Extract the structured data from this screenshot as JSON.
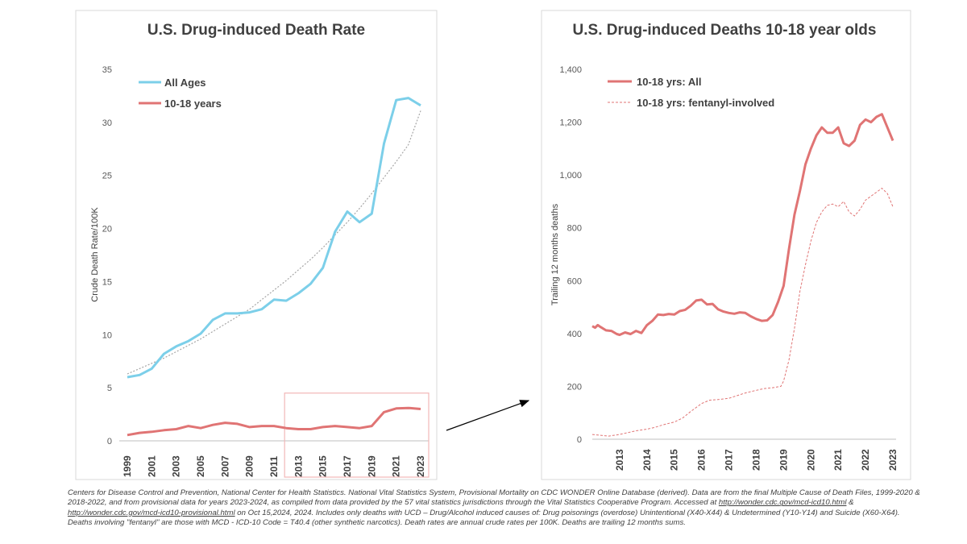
{
  "colors": {
    "all_ages": "#7ccfe9",
    "youth": "#e07474",
    "trend": "#a6a6a6",
    "highlight_box": "#f2b7b7",
    "axis": "#bfbfbf",
    "arrow": "#000000"
  },
  "chart_data": [
    {
      "type": "line",
      "title": "U.S. Drug-induced Death Rate",
      "xlabel": "",
      "ylabel": "Crude Death Rate/100K",
      "ylim": [
        0,
        35
      ],
      "yticks": [
        0,
        5,
        10,
        15,
        20,
        25,
        30,
        35
      ],
      "tick_labels": [
        "0",
        "5",
        "10",
        "15",
        "20",
        "25",
        "30",
        "35"
      ],
      "x": [
        1999,
        2000,
        2001,
        2002,
        2003,
        2004,
        2005,
        2006,
        2007,
        2008,
        2009,
        2010,
        2011,
        2012,
        2013,
        2014,
        2015,
        2016,
        2017,
        2018,
        2019,
        2020,
        2021,
        2022,
        2023
      ],
      "x_tick_labels": [
        "1999",
        "2001",
        "2003",
        "2005",
        "2007",
        "2009",
        "2011",
        "2013",
        "2015",
        "2017",
        "2019",
        "2021",
        "2023"
      ],
      "series": [
        {
          "name": "All Ages",
          "values": [
            6.0,
            6.2,
            6.8,
            8.2,
            8.9,
            9.4,
            10.1,
            11.4,
            12.0,
            12.0,
            12.1,
            12.4,
            13.3,
            13.2,
            13.9,
            14.8,
            16.3,
            19.7,
            21.6,
            20.6,
            21.4,
            28.0,
            32.1,
            32.3,
            31.6
          ]
        },
        {
          "name": "10-18 years",
          "values": [
            0.55,
            0.75,
            0.85,
            1.0,
            1.1,
            1.4,
            1.2,
            1.5,
            1.7,
            1.6,
            1.3,
            1.4,
            1.4,
            1.2,
            1.1,
            1.1,
            1.3,
            1.4,
            1.3,
            1.2,
            1.4,
            2.7,
            3.05,
            3.1,
            3.0
          ]
        },
        {
          "name": "All Ages trend",
          "style": "dotted",
          "values": [
            6.3,
            6.8,
            7.3,
            7.8,
            8.4,
            9.0,
            9.6,
            10.3,
            11.0,
            11.7,
            12.4,
            13.3,
            14.2,
            15.1,
            16.1,
            17.1,
            18.2,
            19.4,
            20.6,
            21.9,
            23.3,
            24.8,
            26.3,
            27.9,
            31.1
          ]
        }
      ],
      "highlight": {
        "from": "2012",
        "to": "2023",
        "ymin": 0,
        "ymax": 4.5
      }
    },
    {
      "type": "line",
      "title": "U.S. Drug-induced Deaths 10-18 year olds",
      "xlabel": "",
      "ylabel": "Trailing 12 months deaths",
      "ylim": [
        0,
        1400
      ],
      "xlim": [
        2012.0,
        2023.0
      ],
      "yticks": [
        0,
        200,
        400,
        600,
        800,
        1000,
        1200,
        1400
      ],
      "tick_labels": [
        "0",
        "200",
        "400",
        "600",
        "800",
        "1,000",
        "1,200",
        "1,400"
      ],
      "x_ticks": [
        2013,
        2014,
        2015,
        2016,
        2017,
        2018,
        2019,
        2020,
        2021,
        2022,
        2023
      ],
      "x_tick_labels": [
        "2013",
        "2014",
        "2015",
        "2016",
        "2017",
        "2018",
        "2019",
        "2020",
        "2021",
        "2022",
        "2023"
      ],
      "series": [
        {
          "name": "10-18 yrs: All",
          "style": "solid",
          "x": [
            2012.0,
            2012.1,
            2012.2,
            2012.3,
            2012.5,
            2012.7,
            2012.9,
            2013.0,
            2013.2,
            2013.4,
            2013.6,
            2013.8,
            2014.0,
            2014.2,
            2014.4,
            2014.6,
            2014.8,
            2015.0,
            2015.2,
            2015.4,
            2015.6,
            2015.8,
            2016.0,
            2016.2,
            2016.4,
            2016.6,
            2016.8,
            2017.0,
            2017.2,
            2017.4,
            2017.6,
            2017.8,
            2018.0,
            2018.2,
            2018.4,
            2018.6,
            2018.8,
            2019.0,
            2019.2,
            2019.4,
            2019.6,
            2019.8,
            2020.0,
            2020.2,
            2020.4,
            2020.6,
            2020.8,
            2021.0,
            2021.2,
            2021.4,
            2021.6,
            2021.8,
            2022.0,
            2022.2,
            2022.4,
            2022.6,
            2022.8,
            2023.0
          ],
          "values": [
            428,
            422,
            432,
            425,
            412,
            410,
            398,
            395,
            404,
            398,
            410,
            402,
            432,
            448,
            472,
            470,
            474,
            472,
            485,
            490,
            505,
            525,
            528,
            510,
            512,
            492,
            483,
            478,
            475,
            480,
            478,
            465,
            455,
            448,
            450,
            470,
            520,
            580,
            720,
            850,
            940,
            1040,
            1100,
            1150,
            1180,
            1160,
            1160,
            1180,
            1120,
            1110,
            1130,
            1190,
            1210,
            1200,
            1220,
            1230,
            1180,
            1130
          ]
        },
        {
          "name": "10-18 yrs: fentanyl-involved",
          "style": "dashed",
          "x": [
            2012.0,
            2012.3,
            2012.6,
            2013.0,
            2013.3,
            2013.6,
            2014.0,
            2014.3,
            2014.6,
            2015.0,
            2015.3,
            2015.6,
            2016.0,
            2016.3,
            2016.6,
            2017.0,
            2017.3,
            2017.6,
            2018.0,
            2018.3,
            2018.6,
            2018.9,
            2019.0,
            2019.2,
            2019.4,
            2019.6,
            2019.8,
            2020.0,
            2020.2,
            2020.4,
            2020.6,
            2020.8,
            2021.0,
            2021.2,
            2021.4,
            2021.6,
            2021.8,
            2022.0,
            2022.2,
            2022.4,
            2022.6,
            2022.8,
            2023.0
          ],
          "values": [
            18,
            15,
            12,
            18,
            25,
            32,
            38,
            45,
            55,
            65,
            80,
            105,
            135,
            148,
            150,
            155,
            165,
            175,
            185,
            192,
            195,
            200,
            220,
            300,
            420,
            560,
            660,
            750,
            820,
            860,
            885,
            890,
            880,
            900,
            860,
            845,
            870,
            905,
            920,
            935,
            950,
            930,
            880
          ]
        }
      ]
    }
  ],
  "footnote": {
    "text_1": "Centers for Disease Control and Prevention, National Center for Health Statistics. National Vital Statistics System, Provisional Mortality on CDC WONDER Online Database (derived). Data are from the final Multiple Cause of Death Files, 1999-2020 & 2018-2022, and from provisional data for years 2023-2024, as compiled from data provided by the 57 vital statistics jurisdictions through the Vital Statistics Cooperative Program. Accessed at ",
    "link_1": "http://wonder.cdc.gov/mcd-icd10.html",
    "text_2": " & ",
    "link_2": "http://wonder.cdc.gov/mcd-icd10-provisional.html",
    "text_3": " on Oct 15,2024, 2024. Includes only deaths with UCD – Drug/Alcohol induced causes of: Drug poisonings (overdose) Unintentional (X40-X44) & Undetermined (Y10-Y14) and Suicide (X60-X64). Deaths involving \"fentanyl\" are those with MCD - ICD-10 Code = T40.4 (other synthetic narcotics). Death rates are annual crude rates per 100K. Deaths are trailing 12 months sums."
  }
}
